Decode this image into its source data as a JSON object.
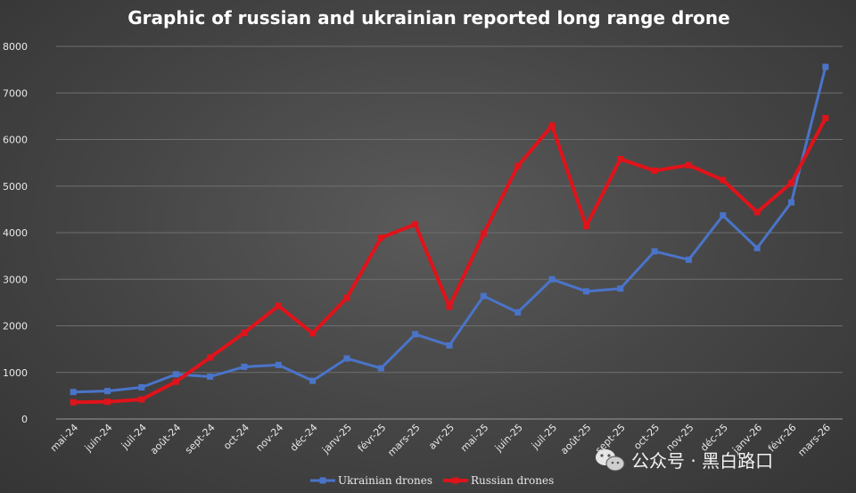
{
  "chart_data": {
    "type": "line",
    "title": "Graphic of russian and ukrainian reported long range drone",
    "xlabel": "",
    "ylabel": "",
    "ylim": [
      0,
      8000
    ],
    "yticks": [
      0,
      1000,
      2000,
      3000,
      4000,
      5000,
      6000,
      7000,
      8000
    ],
    "grid": true,
    "legend_position": "bottom",
    "categories": [
      "mai-24",
      "juin-24",
      "juil-24",
      "août-24",
      "sept-24",
      "oct-24",
      "nov-24",
      "déc-24",
      "janv-25",
      "févr-25",
      "mars-25",
      "avr-25",
      "mai-25",
      "juin-25",
      "juil-25",
      "août-25",
      "sept-25",
      "oct-25",
      "nov-25",
      "déc-25",
      "janv-26",
      "févr-26",
      "mars-26"
    ],
    "series": [
      {
        "name": "Ukrainian drones",
        "color": "#4a74c9",
        "values": [
          580,
          600,
          680,
          960,
          910,
          1120,
          1160,
          820,
          1300,
          1090,
          1820,
          1580,
          2640,
          2290,
          3000,
          2740,
          2800,
          3600,
          3420,
          4370,
          3670,
          4650,
          7560
        ]
      },
      {
        "name": "Russian drones",
        "color": "#e0131a",
        "values": [
          360,
          370,
          420,
          800,
          1320,
          1850,
          2430,
          1840,
          2600,
          3890,
          4180,
          2410,
          3980,
          5430,
          6300,
          4140,
          5580,
          5330,
          5450,
          5130,
          4440,
          5070,
          6460
        ]
      }
    ]
  },
  "watermark": {
    "icon": "wechat-icon",
    "text": "公众号 · 黑白路口"
  }
}
